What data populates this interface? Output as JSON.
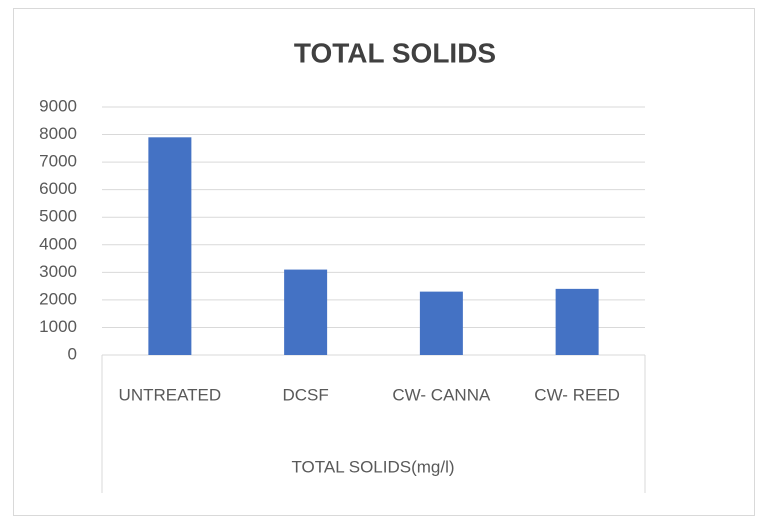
{
  "chart_data": {
    "type": "bar",
    "title": "TOTAL SOLIDS",
    "categories": [
      "UNTREATED",
      "DCSF",
      "CW- CANNA",
      "CW- REED"
    ],
    "values": [
      7900,
      3100,
      2300,
      2400
    ],
    "color": "#4472c4",
    "x_label": "TOTAL SOLIDS(mg/l)",
    "ylim": [
      0,
      9000
    ],
    "yticks": [
      0,
      1000,
      2000,
      3000,
      4000,
      5000,
      6000,
      7000,
      8000,
      9000
    ],
    "grid": true
  }
}
